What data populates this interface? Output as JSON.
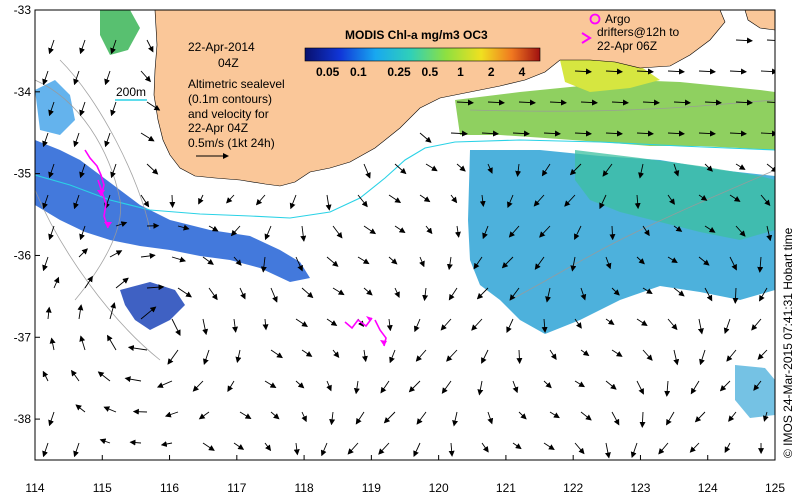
{
  "map": {
    "date": "22-Apr-2014",
    "time": "04Z",
    "colorbar_title": "MODIS Chl-a mg/m3 OC3",
    "colorbar_ticks": [
      "0.05",
      "0.1",
      "0.25",
      "0.5",
      "1",
      "2",
      "4"
    ],
    "isobath_label": "200m",
    "sealevel_note": [
      "Altimetric sealevel",
      "(0.1m contours)",
      "and velocity for",
      "22-Apr 04Z"
    ],
    "scale_label": "0.5m/s (1kt 24h)",
    "argo_label": "Argo",
    "drifter_label": [
      "drifters@12h to",
      "22-Apr 06Z"
    ],
    "credit": "© IMOS 24-Mar-2015 07:41:31 Hobart time",
    "x_ticks": [
      "114",
      "115",
      "116",
      "117",
      "118",
      "119",
      "120",
      "121",
      "122",
      "123",
      "124",
      "125"
    ],
    "y_ticks": [
      "-33",
      "-34",
      "-35",
      "-36",
      "-37",
      "-38"
    ],
    "lon_range": [
      114,
      125
    ],
    "lat_range": [
      -38.5,
      -33
    ],
    "colors": {
      "land": "#fac799",
      "isobath": "#2ad2e6",
      "drifters": "#ff00ff",
      "chl_low": "#1e3fb0",
      "chl_mid": "#30b4e0",
      "chl_high": "#b6e040"
    }
  }
}
